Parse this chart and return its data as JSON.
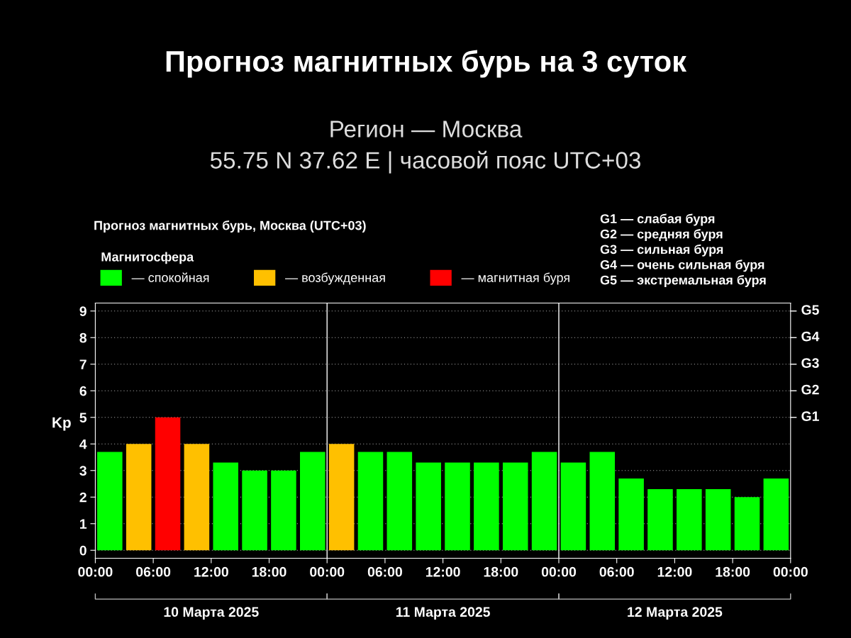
{
  "chart_data": {
    "type": "bar",
    "title": "Прогноз магнитных бурь на 3 суток",
    "subtitle": "Регион — Москва\n55.75 N 37.62 E | часовой пояс UTC+03",
    "ylabel": "Kp",
    "legend_title": "Магнитосфера",
    "x": [
      "2025-03-10T01:30",
      "2025-03-10T04:30",
      "2025-03-10T07:30",
      "2025-03-10T10:30",
      "2025-03-10T13:30",
      "2025-03-10T16:30",
      "2025-03-10T19:30",
      "2025-03-10T22:30",
      "2025-03-11T01:30",
      "2025-03-11T04:30",
      "2025-03-11T07:30",
      "2025-03-11T10:30",
      "2025-03-11T13:30",
      "2025-03-11T16:30",
      "2025-03-11T19:30",
      "2025-03-11T22:30",
      "2025-03-12T01:30",
      "2025-03-12T04:30",
      "2025-03-12T07:30",
      "2025-03-12T10:30",
      "2025-03-12T13:30",
      "2025-03-12T16:30",
      "2025-03-12T19:30",
      "2025-03-12T22:30"
    ],
    "series": [
      {
        "name": "— спокойная",
        "color": "#00ff00",
        "values": [
          3.7,
          null,
          null,
          null,
          3.3,
          3,
          3,
          3.7,
          null,
          3.7,
          3.7,
          3.3,
          3.3,
          3.3,
          3.3,
          3.7,
          3.3,
          3.7,
          2.7,
          2.3,
          2.3,
          2.3,
          2,
          2.7
        ]
      },
      {
        "name": "— возбужденная",
        "color": "#ffc000",
        "values": [
          null,
          4,
          null,
          4,
          null,
          null,
          null,
          null,
          4,
          null,
          null,
          null,
          null,
          null,
          null,
          null,
          null,
          null,
          null,
          null,
          null,
          null,
          null,
          null
        ]
      },
      {
        "name": "— магнитная буря",
        "color": "#ff0000",
        "values": [
          null,
          null,
          5,
          null,
          null,
          null,
          null,
          null,
          null,
          null,
          null,
          null,
          null,
          null,
          null,
          null,
          null,
          null,
          null,
          null,
          null,
          null,
          null,
          null
        ]
      }
    ],
    "xlim": [
      "2025-03-10T00:00",
      "2025-03-13T00:00"
    ],
    "xticks": [
      {
        "value": "2025-03-10T00:00",
        "label": "00:00"
      },
      {
        "value": "2025-03-10T06:00",
        "label": "06:00"
      },
      {
        "value": "2025-03-10T12:00",
        "label": "12:00"
      },
      {
        "value": "2025-03-10T18:00",
        "label": "18:00"
      },
      {
        "value": "2025-03-11T00:00",
        "label": "00:00"
      },
      {
        "value": "2025-03-11T06:00",
        "label": "06:00"
      },
      {
        "value": "2025-03-11T12:00",
        "label": "12:00"
      },
      {
        "value": "2025-03-11T18:00",
        "label": "18:00"
      },
      {
        "value": "2025-03-12T00:00",
        "label": "00:00"
      },
      {
        "value": "2025-03-12T06:00",
        "label": "06:00"
      },
      {
        "value": "2025-03-12T12:00",
        "label": "12:00"
      },
      {
        "value": "2025-03-12T18:00",
        "label": "18:00"
      },
      {
        "value": "2025-03-13T00:00",
        "label": "00:00"
      }
    ],
    "ylim": [
      -0.3,
      9.3
    ],
    "yticks": [
      0,
      1,
      2,
      3,
      4,
      5,
      6,
      7,
      8,
      9
    ],
    "grid": "y",
    "legend": "top left",
    "ref_lines": [
      {
        "axis": "x",
        "value": "2025-03-11T00:00",
        "color": "#ffffff"
      },
      {
        "axis": "x",
        "value": "2025-03-12T00:00",
        "color": "#ffffff"
      }
    ],
    "annotations": [
      "Прогноз магнитных бурь, Москва (UTC+03)",
      "G1 — слабая буря\nG2 — средняя буря\nG3 — сильная буря\nG4 — очень сильная буря\nG5 — экстремальная буря",
      "10 Марта 2025",
      "11 Марта 2025",
      "12 Марта 2025",
      "G1",
      "G2",
      "G3",
      "G4",
      "G5"
    ]
  }
}
